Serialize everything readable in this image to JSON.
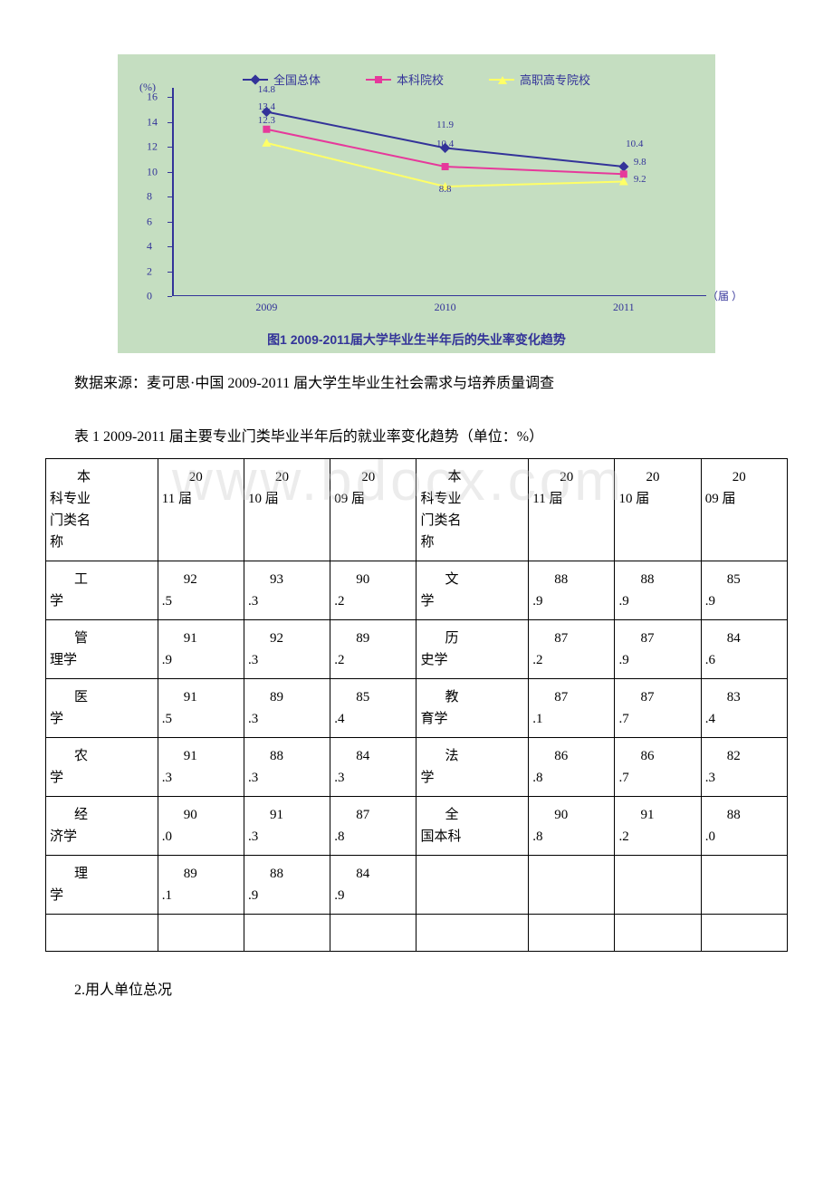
{
  "chart": {
    "type": "line",
    "background_color": "#c5dec1",
    "axis_color": "#333399",
    "text_color": "#333399",
    "y_axis_title": "(%)",
    "x_axis_title": "（届 ）",
    "y_ticks": [
      0,
      2,
      4,
      6,
      8,
      10,
      12,
      14,
      16
    ],
    "ylim": [
      0,
      16
    ],
    "x_categories": [
      "2009",
      "2010",
      "2011"
    ],
    "x_positions_pct": [
      18,
      52,
      86
    ],
    "series": [
      {
        "name": "全国总体",
        "color": "#333399",
        "marker": "diamond",
        "values": [
          14.8,
          11.9,
          10.4
        ],
        "label_offsets": [
          [
            0,
            -14
          ],
          [
            0,
            -14
          ],
          [
            12,
            -14
          ]
        ]
      },
      {
        "name": "本科院校",
        "color": "#e6399b",
        "marker": "square",
        "values": [
          13.4,
          10.4,
          9.8
        ],
        "label_offsets": [
          [
            0,
            -14
          ],
          [
            0,
            -14
          ],
          [
            18,
            -2
          ]
        ]
      },
      {
        "name": "高职高专院校",
        "color": "#ffff66",
        "marker": "triangle",
        "values": [
          12.3,
          8.8,
          9.2
        ],
        "label_offsets": [
          [
            0,
            -14
          ],
          [
            0,
            14
          ],
          [
            18,
            8
          ]
        ]
      }
    ],
    "subtitle": "图1 2009-2011届大学毕业生半年后的失业率变化趋势",
    "subtitle_fontsize": 14
  },
  "source_text": "数据来源：麦可思·中国 2009-2011 届大学生毕业生社会需求与培养质量调查",
  "table": {
    "caption": "表 1  2009-2011 届主要专业门类毕业半年后的就业率变化趋势（单位：%）",
    "headers_left": [
      "本科专业门类名称",
      "2011 届",
      "2010 届",
      "2009 届"
    ],
    "headers_right": [
      "本科专业门类名称",
      "2011 届",
      "2010 届",
      "2009 届"
    ],
    "header_name_html_left": "　　本<br>科专业<br>门类名<br>称",
    "header_name_html_right": "　　本<br>科专业<br>门类名<br>称",
    "header_year_html": [
      "　　20<br>11 届",
      "　　20<br>10 届",
      "　　20<br>09 届"
    ],
    "rows": [
      {
        "l_name": "工学",
        "l": [
          "92.5",
          "93.3",
          "90.2"
        ],
        "r_name": "文学",
        "r": [
          "88.9",
          "88.9",
          "85.9"
        ]
      },
      {
        "l_name": "管理学",
        "l": [
          "91.9",
          "92.3",
          "89.2"
        ],
        "r_name": "历史学",
        "r": [
          "87.2",
          "87.9",
          "84.6"
        ]
      },
      {
        "l_name": "医学",
        "l": [
          "91.5",
          "89.3",
          "85.4"
        ],
        "r_name": "教育学",
        "r": [
          "87.1",
          "87.7",
          "83.4"
        ]
      },
      {
        "l_name": "农学",
        "l": [
          "91.3",
          "88.3",
          "84.3"
        ],
        "r_name": "法学",
        "r": [
          "86.8",
          "86.7",
          "82.3"
        ]
      },
      {
        "l_name": "经济学",
        "l": [
          "90.0",
          "91.3",
          "87.8"
        ],
        "r_name": "全国本科",
        "r": [
          "90.8",
          "91.2",
          "88.0"
        ]
      },
      {
        "l_name": "理学",
        "l": [
          "89.1",
          "88.9",
          "84.9"
        ],
        "r_name": "",
        "r": [
          "",
          "",
          ""
        ]
      }
    ],
    "name_first_indent": "　　",
    "val_first_indent": "　　"
  },
  "watermark": "www.bdocx.com",
  "footer": "2.用人单位总况"
}
